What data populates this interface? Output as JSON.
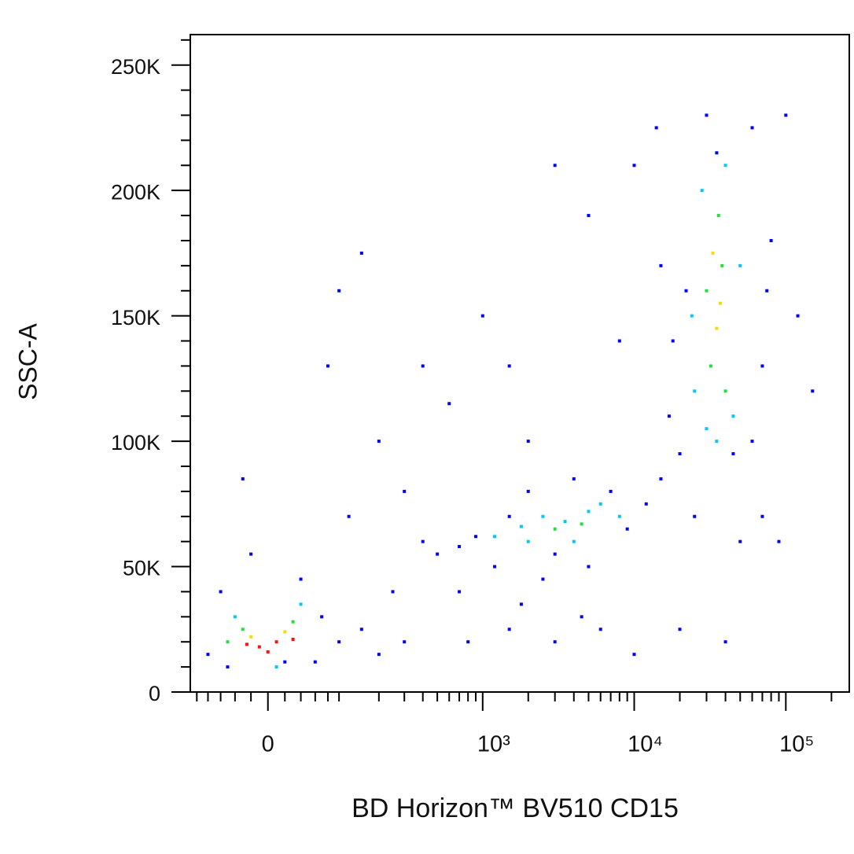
{
  "chart_data": {
    "type": "scatter",
    "x_label": "BD Horizon™ BV510 CD15",
    "y_label": "SSC-A",
    "xscale": "biexponential",
    "xlim": [
      -113,
      262144
    ],
    "ylim": [
      0,
      262144
    ],
    "xticks": [
      0,
      {
        "value": 1000,
        "label": "10³"
      },
      {
        "value": 10000,
        "label": "10⁴"
      },
      {
        "value": 100000,
        "label": "10⁵"
      }
    ],
    "yticks": [
      0,
      {
        "value": 50000,
        "label": "50K"
      },
      {
        "value": 100000,
        "label": "100K"
      },
      {
        "value": 150000,
        "label": "150K"
      },
      {
        "value": 200000,
        "label": "200K"
      },
      {
        "value": 250000,
        "label": "250K"
      }
    ],
    "x_minor_ticks": [
      -100,
      -80,
      -60,
      -40,
      -20,
      20,
      40,
      60,
      80,
      100,
      200,
      300,
      400,
      500,
      600,
      700,
      800,
      900,
      2000,
      3000,
      4000,
      5000,
      6000,
      7000,
      8000,
      9000,
      20000,
      30000,
      40000,
      50000,
      60000,
      70000,
      80000,
      90000,
      200000
    ],
    "y_minor_ticks": [
      10000,
      20000,
      30000,
      40000,
      60000,
      70000,
      80000,
      90000,
      110000,
      120000,
      130000,
      140000,
      160000,
      170000,
      180000,
      190000,
      210000,
      220000,
      230000,
      240000,
      260000
    ],
    "series": [
      {
        "color": "#0000ff",
        "x": [
          -80,
          -60,
          -20,
          40,
          70,
          100,
          150,
          200,
          300,
          400,
          500,
          700,
          900,
          1200,
          1500,
          2000,
          2500,
          3000,
          4000,
          5000,
          7000,
          9000,
          12000,
          15000,
          800,
          1500,
          3000,
          6000,
          10000,
          20000,
          40000,
          200,
          100,
          80,
          150,
          1500,
          3000,
          5000,
          10000,
          14000,
          100000,
          80000,
          120000,
          150000,
          60000,
          30000,
          15000,
          17000,
          20000,
          70000,
          90000,
          50000,
          25000,
          60000,
          70000,
          75000,
          22000,
          18000,
          45000,
          35000,
          400,
          600,
          250,
          120,
          -30,
          2000,
          1000,
          8000,
          300,
          700,
          1800,
          4500,
          20,
          -50,
          60
        ],
        "y": [
          15000,
          40000,
          55000,
          45000,
          30000,
          20000,
          25000,
          15000,
          20000,
          60000,
          55000,
          58000,
          62000,
          50000,
          70000,
          80000,
          45000,
          55000,
          85000,
          50000,
          80000,
          65000,
          75000,
          85000,
          20000,
          25000,
          20000,
          25000,
          15000,
          25000,
          20000,
          100000,
          160000,
          130000,
          175000,
          130000,
          210000,
          190000,
          210000,
          225000,
          230000,
          180000,
          150000,
          120000,
          225000,
          230000,
          170000,
          110000,
          95000,
          70000,
          60000,
          60000,
          70000,
          100000,
          130000,
          160000,
          160000,
          140000,
          95000,
          215000,
          130000,
          115000,
          40000,
          70000,
          85000,
          100000,
          150000,
          140000,
          80000,
          40000,
          35000,
          30000,
          12000,
          10000,
          12000
        ]
      },
      {
        "color": "#00c8ff",
        "x": [
          -40,
          40,
          10,
          1200,
          2500,
          4000,
          6000,
          3500,
          25000,
          28000,
          40000,
          45000,
          30000,
          50000,
          24000,
          35000,
          8000,
          2000,
          1800,
          5000
        ],
        "y": [
          30000,
          35000,
          10000,
          62000,
          70000,
          60000,
          75000,
          68000,
          120000,
          200000,
          210000,
          110000,
          105000,
          170000,
          150000,
          100000,
          70000,
          60000,
          66000,
          72000
        ]
      },
      {
        "color": "#20e040",
        "x": [
          -30,
          30,
          -50,
          32000,
          38000,
          36000,
          30000,
          40000,
          3000,
          4500
        ],
        "y": [
          25000,
          28000,
          20000,
          130000,
          170000,
          190000,
          160000,
          120000,
          65000,
          67000
        ]
      },
      {
        "color": "#f0e000",
        "x": [
          -20,
          20,
          35000,
          33000,
          37000
        ],
        "y": [
          22000,
          24000,
          145000,
          175000,
          155000
        ]
      },
      {
        "color": "#ff1010",
        "x": [
          -10,
          10,
          0,
          -25,
          30
        ],
        "y": [
          18000,
          20000,
          16000,
          19000,
          21000
        ]
      }
    ]
  }
}
